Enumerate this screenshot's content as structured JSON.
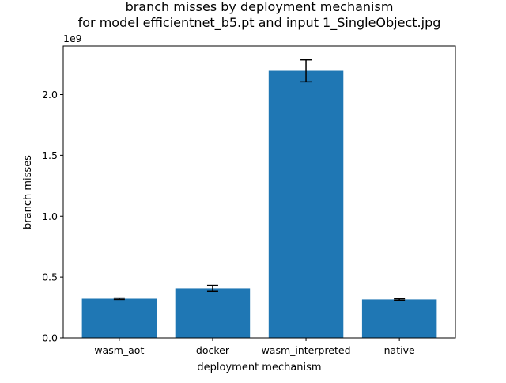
{
  "chart_data": {
    "type": "bar",
    "title": "branch misses by deployment mechanism",
    "subtitle": "for model efficientnet_b5.pt and input 1_SingleObject.jpg",
    "xlabel": "deployment mechanism",
    "ylabel": "branch misses",
    "y_offset_label": "1e9",
    "ylim": [
      0,
      2.4
    ],
    "y_ticks": [
      "0.0",
      "0.5",
      "1.0",
      "1.5",
      "2.0"
    ],
    "y_tick_values": [
      0,
      0.5,
      1.0,
      1.5,
      2.0
    ],
    "categories": [
      "wasm_aot",
      "docker",
      "wasm_interpreted",
      "native"
    ],
    "values": [
      0.322,
      0.407,
      2.195,
      0.316
    ],
    "errors": [
      0.006,
      0.025,
      0.09,
      0.006
    ],
    "bar_color": "#1f77b4",
    "grid": false,
    "legend": "none"
  }
}
